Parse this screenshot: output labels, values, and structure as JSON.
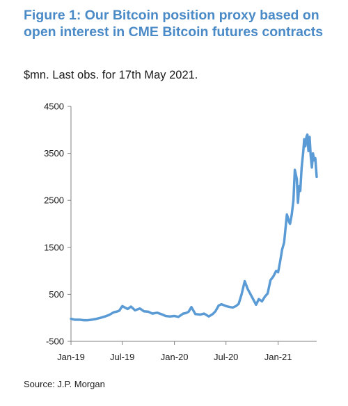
{
  "title": "Figure 1: Our Bitcoin position proxy based on open interest in CME Bitcoin futures contracts",
  "subtitle": "$mn. Last obs. for 17th May 2021.",
  "source": "Source: J.P. Morgan",
  "chart_data": {
    "type": "line",
    "xlabel": "",
    "ylabel": "",
    "ylim": [
      -500,
      4500
    ],
    "yticks": [
      -500,
      500,
      1500,
      2500,
      3500,
      4500
    ],
    "ytick_labels": [
      "-500",
      "500",
      "1500",
      "2500",
      "3500",
      "4500"
    ],
    "xticks": [
      "Jan-19",
      "Jul-19",
      "Jan-20",
      "Jul-20",
      "Jan-21"
    ],
    "xlim": [
      "2019-01-01",
      "2021-05-17"
    ],
    "grid": false,
    "line_color": "#5b9bd5",
    "series": [
      {
        "x": [
          "2019-01-01",
          "2019-01-15",
          "2019-02-01",
          "2019-02-15",
          "2019-03-01",
          "2019-03-15",
          "2019-04-01",
          "2019-04-15",
          "2019-05-01",
          "2019-05-15",
          "2019-06-01",
          "2019-06-10",
          "2019-06-20",
          "2019-07-01",
          "2019-07-10",
          "2019-07-20",
          "2019-08-01",
          "2019-08-15",
          "2019-09-01",
          "2019-09-15",
          "2019-10-01",
          "2019-10-15",
          "2019-11-01",
          "2019-11-15",
          "2019-12-01",
          "2019-12-15",
          "2020-01-01",
          "2020-01-15",
          "2020-02-01",
          "2020-02-10",
          "2020-02-20",
          "2020-03-01",
          "2020-03-15",
          "2020-04-01",
          "2020-04-15",
          "2020-05-01",
          "2020-05-15",
          "2020-05-25",
          "2020-06-05",
          "2020-06-15",
          "2020-07-01",
          "2020-07-15",
          "2020-07-25",
          "2020-08-05",
          "2020-08-15",
          "2020-08-25",
          "2020-09-05",
          "2020-09-15",
          "2020-10-01",
          "2020-10-15",
          "2020-10-25",
          "2020-11-05",
          "2020-11-15",
          "2020-11-25",
          "2020-12-05",
          "2020-12-15",
          "2020-12-25",
          "2021-01-01",
          "2021-01-08",
          "2021-01-15",
          "2021-01-22",
          "2021-02-01",
          "2021-02-08",
          "2021-02-12",
          "2021-02-18",
          "2021-02-24",
          "2021-03-01",
          "2021-03-08",
          "2021-03-12",
          "2021-03-16",
          "2021-03-20",
          "2021-03-25",
          "2021-03-30",
          "2021-04-03",
          "2021-04-07",
          "2021-04-11",
          "2021-04-14",
          "2021-04-18",
          "2021-04-22",
          "2021-04-26",
          "2021-04-30",
          "2021-05-04",
          "2021-05-08",
          "2021-05-12",
          "2021-05-17"
        ],
        "values": [
          -20,
          -40,
          -40,
          -50,
          -50,
          -40,
          -20,
          0,
          30,
          60,
          120,
          130,
          150,
          250,
          220,
          190,
          240,
          160,
          200,
          140,
          130,
          90,
          110,
          80,
          40,
          30,
          40,
          20,
          90,
          100,
          130,
          230,
          80,
          70,
          90,
          30,
          80,
          140,
          260,
          290,
          250,
          230,
          220,
          250,
          300,
          500,
          780,
          620,
          440,
          280,
          400,
          350,
          450,
          520,
          800,
          880,
          1000,
          970,
          1200,
          1450,
          1600,
          2200,
          2050,
          2000,
          2200,
          2500,
          3150,
          2950,
          2450,
          2800,
          2700,
          3200,
          3500,
          3800,
          3650,
          3850,
          3900,
          3550,
          3850,
          3450,
          3200,
          3500,
          3350,
          3400,
          3000
        ]
      }
    ]
  }
}
